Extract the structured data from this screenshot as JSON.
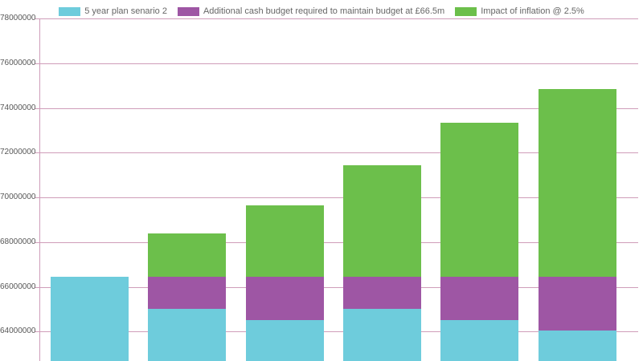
{
  "legend": {
    "items": [
      {
        "label": "5 year plan senario 2",
        "color": "#6eccdc"
      },
      {
        "label": "Additional cash budget required to maintain budget at £66.5m",
        "color": "#9e56a4"
      },
      {
        "label": "Impact of inflation @ 2.5%",
        "color": "#6cbf4b"
      }
    ]
  },
  "axis": {
    "y_tick_labels": [
      "78000000",
      "76000000",
      "74000000",
      "72000000",
      "70000000",
      "68000000",
      "66000000",
      "64000000"
    ]
  },
  "chart_data": {
    "type": "bar",
    "stacked": true,
    "title": "",
    "xlabel": "",
    "ylabel": "",
    "categories": [
      "",
      "",
      "",
      "",
      "",
      ""
    ],
    "series": [
      {
        "name": "5 year plan senario 2",
        "color": "#6eccdc",
        "values": [
          66450000,
          65000000,
          64500000,
          65000000,
          64500000,
          64050000
        ]
      },
      {
        "name": "Additional cash budget required to maintain budget at £66.5m",
        "color": "#9e56a4",
        "values": [
          0,
          1450000,
          1950000,
          1450000,
          1950000,
          2400000
        ]
      },
      {
        "name": "Impact of inflation @ 2.5%",
        "color": "#6cbf4b",
        "values": [
          0,
          1950000,
          3200000,
          5000000,
          6900000,
          8400000
        ]
      }
    ],
    "stack_totals": [
      66450000,
      68400000,
      69650000,
      71450000,
      73350000,
      74850000
    ],
    "y_ticks": [
      78000000,
      76000000,
      74000000,
      72000000,
      70000000,
      68000000,
      66000000,
      64000000
    ],
    "ylim_visible": [
      62600000,
      78000000
    ],
    "grid": "horizontal",
    "legend_position": "top",
    "x_axis_labels_visible": false
  },
  "colors": {
    "grid": "#cf9db9",
    "axis": "#cf9db9",
    "tick_text": "#575757",
    "legend_text": "#666666",
    "background": "#ffffff"
  }
}
